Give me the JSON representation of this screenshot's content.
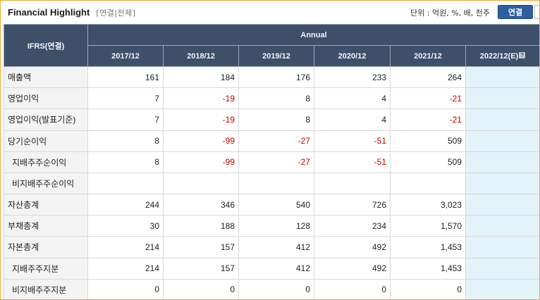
{
  "header": {
    "title": "Financial Highlight",
    "subtitle": "[연결|전체]",
    "unit_text": "단위 : 억원, %, 배, 천주",
    "toggle_label": "연결"
  },
  "table": {
    "corner_label": "IFRS(연결)",
    "group_label": "Annual",
    "columns": [
      "2017/12",
      "2018/12",
      "2019/12",
      "2020/12",
      "2021/12",
      "2022/12(E)"
    ],
    "rows": [
      {
        "label": "매출액",
        "values": [
          "161",
          "184",
          "176",
          "233",
          "264",
          ""
        ]
      },
      {
        "label": "영업이익",
        "values": [
          "7",
          "-19",
          "8",
          "4",
          "-21",
          ""
        ]
      },
      {
        "label": "영업이익(발표기준)",
        "values": [
          "7",
          "-19",
          "8",
          "4",
          "-21",
          ""
        ]
      },
      {
        "label": "당기순이익",
        "values": [
          "8",
          "-99",
          "-27",
          "-51",
          "509",
          ""
        ]
      },
      {
        "label": "지배주주순이익",
        "values": [
          "8",
          "-99",
          "-27",
          "-51",
          "509",
          ""
        ]
      },
      {
        "label": "비지배주주순이익",
        "values": [
          "",
          "",
          "",
          "",
          "",
          ""
        ]
      },
      {
        "label": "자산총계",
        "values": [
          "244",
          "346",
          "540",
          "726",
          "3,023",
          ""
        ]
      },
      {
        "label": "부채총계",
        "values": [
          "30",
          "188",
          "128",
          "234",
          "1,570",
          ""
        ]
      },
      {
        "label": "자본총계",
        "values": [
          "214",
          "157",
          "412",
          "492",
          "1,453",
          ""
        ]
      },
      {
        "label": "지배주주지분",
        "values": [
          "214",
          "157",
          "412",
          "492",
          "1,453",
          ""
        ]
      },
      {
        "label": "비지배주주지분",
        "values": [
          "0",
          "0",
          "0",
          "0",
          "0",
          ""
        ]
      }
    ]
  },
  "colors": {
    "header_bg": "#3e4f6a",
    "negative": "#c00000",
    "estimate_bg": "#e3f3fb",
    "frame_border": "#f0a92c",
    "toggle_bg": "#2e5f9e"
  },
  "icons": {
    "help": "question-mark-icon"
  }
}
